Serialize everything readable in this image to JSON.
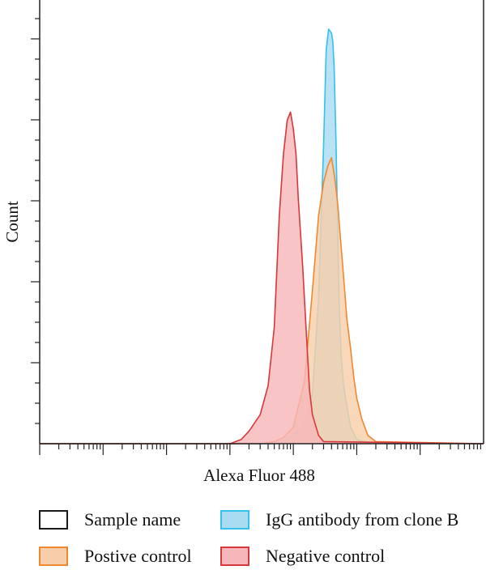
{
  "chart_data": {
    "type": "area",
    "title": "",
    "xlabel": "Alexa Fluor 488",
    "ylabel": "Count",
    "x_scale": "log",
    "xlim": [
      1,
      10000000
    ],
    "ylim": [
      0,
      1
    ],
    "grid": false,
    "legend_position": "bottom",
    "series": [
      {
        "name": "Sample name",
        "fill": "#ffffff",
        "stroke": "#000000",
        "x": [],
        "y": []
      },
      {
        "name": "IgG antibody from clone B",
        "fill": "#a9dcf1",
        "stroke": "#35c1ea",
        "x": [
          1,
          5000,
          7000,
          10000,
          15000,
          20000,
          25000,
          30000,
          33000,
          36000,
          40000,
          42000,
          44000,
          47000,
          50000,
          53000,
          57000,
          62000,
          70000,
          80000,
          100000,
          150000,
          300000,
          10000000
        ],
        "y": [
          0,
          0,
          0.005,
          0.02,
          0.05,
          0.12,
          0.35,
          0.72,
          0.95,
          1.0,
          0.99,
          0.97,
          0.91,
          0.73,
          0.52,
          0.33,
          0.21,
          0.14,
          0.09,
          0.04,
          0.01,
          0.003,
          0,
          0
        ]
      },
      {
        "name": "Postive control",
        "fill": "#f8ceaa",
        "stroke": "#ef8833",
        "x": [
          1,
          3000,
          5000,
          7000,
          10000,
          15000,
          20000,
          25000,
          30000,
          35000,
          40000,
          45000,
          50000,
          55000,
          60000,
          70000,
          80000,
          90000,
          100000,
          120000,
          150000,
          200000,
          10000000
        ],
        "y": [
          0,
          0,
          0.005,
          0.015,
          0.04,
          0.15,
          0.37,
          0.55,
          0.63,
          0.67,
          0.69,
          0.64,
          0.58,
          0.5,
          0.43,
          0.3,
          0.23,
          0.16,
          0.11,
          0.06,
          0.02,
          0.005,
          0
        ]
      },
      {
        "name": "Negative control",
        "fill": "#f6b7ba",
        "stroke": "#d9373b",
        "x": [
          1,
          1000,
          1500,
          2000,
          3000,
          4000,
          5000,
          6000,
          7000,
          8000,
          9000,
          10000,
          11000,
          12000,
          14000,
          16000,
          18000,
          20000,
          25000,
          30000,
          10000000
        ],
        "y": [
          0,
          0,
          0.01,
          0.03,
          0.07,
          0.14,
          0.28,
          0.55,
          0.7,
          0.78,
          0.8,
          0.76,
          0.7,
          0.59,
          0.43,
          0.27,
          0.13,
          0.07,
          0.02,
          0.005,
          0
        ]
      }
    ]
  },
  "legend": [
    {
      "label": "Sample name",
      "fill": "#ffffff",
      "stroke": "#1a1a1a"
    },
    {
      "label": "IgG antibody from clone B",
      "fill": "#a9dcf1",
      "stroke": "#35c1ea"
    },
    {
      "label": "Postive control",
      "fill": "#f8ceaa",
      "stroke": "#ef8833"
    },
    {
      "label": "Negative control",
      "fill": "#f6b7ba",
      "stroke": "#d9373b"
    }
  ]
}
